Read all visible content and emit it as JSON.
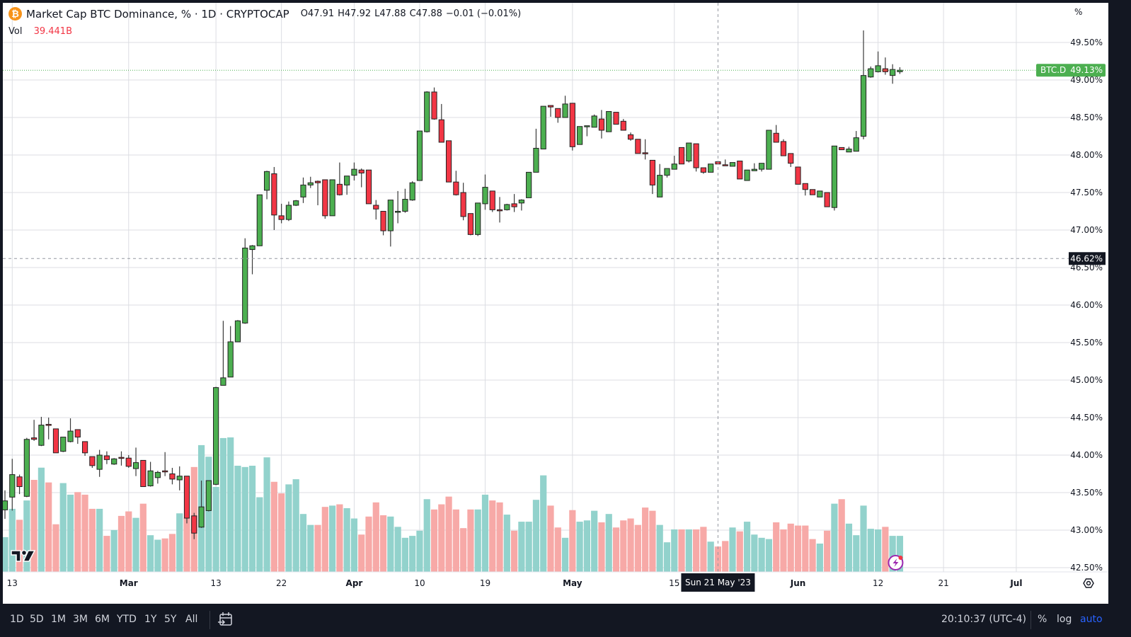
{
  "header": {
    "title": "Market Cap BTC Dominance, % · 1D · CRYPTOCAP",
    "open": "O47.91",
    "high": "H47.92",
    "low": "L47.88",
    "close": "C47.88",
    "change": "−0.01 (−0.01%)",
    "vol_label": "Vol",
    "vol_value": "39.441B",
    "axis_unit": "%"
  },
  "colors": {
    "up": "#4caf50",
    "down": "#f23645",
    "vol_up": "#92d2cc",
    "vol_down": "#f7a9a7",
    "accent": "#2962ff"
  },
  "chart_data": {
    "type": "candlestick",
    "title": "Market Cap BTC Dominance, % · 1D · CRYPTOCAP",
    "symbol_tag": "BTC.D",
    "last_price_label": "49.13%",
    "crosshair": {
      "price_label": "46.62%",
      "date_label": "Sun 21 May '23",
      "bar_index": 98,
      "price": 46.62
    },
    "ylim": [
      42.5,
      49.5
    ],
    "y_ticks": [
      "42.50%",
      "43.00%",
      "43.50%",
      "44.00%",
      "44.50%",
      "45.00%",
      "45.50%",
      "46.00%",
      "46.50%",
      "47.00%",
      "47.50%",
      "48.00%",
      "48.50%",
      "49.00%",
      "49.50%"
    ],
    "y_tick_values": [
      42.5,
      43,
      43.5,
      44,
      44.5,
      45,
      45.5,
      46,
      46.5,
      47,
      47.5,
      48,
      48.5,
      49,
      49.5
    ],
    "x_ticks": [
      {
        "label": "13",
        "bar": 1
      },
      {
        "label": "Mar",
        "bar": 17,
        "bold": true
      },
      {
        "label": "13",
        "bar": 29
      },
      {
        "label": "22",
        "bar": 38
      },
      {
        "label": "Apr",
        "bar": 48,
        "bold": true
      },
      {
        "label": "10",
        "bar": 57
      },
      {
        "label": "19",
        "bar": 66
      },
      {
        "label": "May",
        "bar": 78,
        "bold": true
      },
      {
        "label": "15",
        "bar": 92
      },
      {
        "label": "Jun",
        "bar": 109,
        "bold": true
      },
      {
        "label": "12",
        "bar": 120
      },
      {
        "label": "21",
        "bar": 129
      },
      {
        "label": "Jul",
        "bar": 139,
        "bold": true
      }
    ],
    "first_bar_date": "2023-02-12",
    "ohlc": [
      [
        43.27,
        43.53,
        43.15,
        43.39
      ],
      [
        43.44,
        43.95,
        43.26,
        43.74
      ],
      [
        43.71,
        43.74,
        43.48,
        43.58
      ],
      [
        43.45,
        44.23,
        43.44,
        44.21
      ],
      [
        44.23,
        44.47,
        44.19,
        44.21
      ],
      [
        44.13,
        44.51,
        44.12,
        44.4
      ],
      [
        44.41,
        44.5,
        44.21,
        44.4
      ],
      [
        44.35,
        44.35,
        44.03,
        44.03
      ],
      [
        44.05,
        44.24,
        44.04,
        44.24
      ],
      [
        44.18,
        44.49,
        44.17,
        44.32
      ],
      [
        44.34,
        44.34,
        44.15,
        44.24
      ],
      [
        44.18,
        44.18,
        43.99,
        44.03
      ],
      [
        43.98,
        43.98,
        43.83,
        43.86
      ],
      [
        43.81,
        44.07,
        43.71,
        44.0
      ],
      [
        43.99,
        44.05,
        43.88,
        43.94
      ],
      [
        43.88,
        43.96,
        43.87,
        43.95
      ],
      [
        43.97,
        44.05,
        43.86,
        43.96
      ],
      [
        43.96,
        44.0,
        43.83,
        43.85
      ],
      [
        43.82,
        44.1,
        43.72,
        43.9
      ],
      [
        43.93,
        43.93,
        43.58,
        43.58
      ],
      [
        43.59,
        43.91,
        43.58,
        43.79
      ],
      [
        43.7,
        43.79,
        43.62,
        43.77
      ],
      [
        43.79,
        44.04,
        43.72,
        43.78
      ],
      [
        43.75,
        43.83,
        43.61,
        43.68
      ],
      [
        43.67,
        43.85,
        43.53,
        43.72
      ],
      [
        43.72,
        43.72,
        43.09,
        43.16
      ],
      [
        43.19,
        43.23,
        42.88,
        42.96
      ],
      [
        43.04,
        43.66,
        43.03,
        43.31
      ],
      [
        43.26,
        43.66,
        43.25,
        43.66
      ],
      [
        43.61,
        44.91,
        43.6,
        44.9
      ],
      [
        44.93,
        45.79,
        44.93,
        45.03
      ],
      [
        45.04,
        45.72,
        45.04,
        45.51
      ],
      [
        45.51,
        45.8,
        45.51,
        45.79
      ],
      [
        45.76,
        46.89,
        45.75,
        46.76
      ],
      [
        46.74,
        46.8,
        46.41,
        46.79
      ],
      [
        46.79,
        47.47,
        46.79,
        47.47
      ],
      [
        47.53,
        47.79,
        47.41,
        47.78
      ],
      [
        47.75,
        47.84,
        47.0,
        47.2
      ],
      [
        47.19,
        47.35,
        47.09,
        47.14
      ],
      [
        47.14,
        47.38,
        47.12,
        47.33
      ],
      [
        47.33,
        47.4,
        47.32,
        47.39
      ],
      [
        47.44,
        47.7,
        47.36,
        47.6
      ],
      [
        47.6,
        47.71,
        47.56,
        47.63
      ],
      [
        47.65,
        47.66,
        47.33,
        47.63
      ],
      [
        47.67,
        47.67,
        47.15,
        47.19
      ],
      [
        47.19,
        47.67,
        47.19,
        47.67
      ],
      [
        47.61,
        47.9,
        47.46,
        47.47
      ],
      [
        47.6,
        47.72,
        47.47,
        47.72
      ],
      [
        47.73,
        47.9,
        47.66,
        47.81
      ],
      [
        47.8,
        47.82,
        47.57,
        47.76
      ],
      [
        47.8,
        47.8,
        47.35,
        47.35
      ],
      [
        47.33,
        47.4,
        47.14,
        47.28
      ],
      [
        47.25,
        47.25,
        46.93,
        46.99
      ],
      [
        46.99,
        47.4,
        46.78,
        47.4
      ],
      [
        47.24,
        47.52,
        47.09,
        47.25
      ],
      [
        47.25,
        47.55,
        47.23,
        47.41
      ],
      [
        47.4,
        47.65,
        47.39,
        47.63
      ],
      [
        47.66,
        48.32,
        47.66,
        48.32
      ],
      [
        48.31,
        48.85,
        48.3,
        48.84
      ],
      [
        48.84,
        48.9,
        48.47,
        48.48
      ],
      [
        48.47,
        48.68,
        48.17,
        48.17
      ],
      [
        48.19,
        48.19,
        47.64,
        47.64
      ],
      [
        47.64,
        47.79,
        47.46,
        47.47
      ],
      [
        47.5,
        47.63,
        47.13,
        47.18
      ],
      [
        47.22,
        47.22,
        46.93,
        46.94
      ],
      [
        46.94,
        47.36,
        46.92,
        47.36
      ],
      [
        47.35,
        47.74,
        47.27,
        47.57
      ],
      [
        47.52,
        47.52,
        47.24,
        47.27
      ],
      [
        47.27,
        47.44,
        47.1,
        47.26
      ],
      [
        47.27,
        47.35,
        47.26,
        47.34
      ],
      [
        47.35,
        47.48,
        47.24,
        47.31
      ],
      [
        47.36,
        47.41,
        47.26,
        47.4
      ],
      [
        47.43,
        47.77,
        47.43,
        47.77
      ],
      [
        47.77,
        48.35,
        47.77,
        48.09
      ],
      [
        48.08,
        48.65,
        48.08,
        48.65
      ],
      [
        48.66,
        48.66,
        48.51,
        48.64
      ],
      [
        48.62,
        48.62,
        48.43,
        48.5
      ],
      [
        48.5,
        48.79,
        48.5,
        48.68
      ],
      [
        48.69,
        48.69,
        48.06,
        48.11
      ],
      [
        48.14,
        48.38,
        48.14,
        48.38
      ],
      [
        48.38,
        48.39,
        48.25,
        48.39
      ],
      [
        48.37,
        48.54,
        48.37,
        48.52
      ],
      [
        48.48,
        48.6,
        48.22,
        48.33
      ],
      [
        48.31,
        48.58,
        48.31,
        48.58
      ],
      [
        48.57,
        48.57,
        48.41,
        48.41
      ],
      [
        48.45,
        48.48,
        48.33,
        48.33
      ],
      [
        48.27,
        48.3,
        48.19,
        48.21
      ],
      [
        48.21,
        48.21,
        48.02,
        48.02
      ],
      [
        48.03,
        48.21,
        47.94,
        48.02
      ],
      [
        47.93,
        47.93,
        47.48,
        47.6
      ],
      [
        47.44,
        47.88,
        47.44,
        47.73
      ],
      [
        47.73,
        47.82,
        47.7,
        47.82
      ],
      [
        47.81,
        47.99,
        47.81,
        47.88
      ],
      [
        48.1,
        48.1,
        47.88,
        47.88
      ],
      [
        47.92,
        48.16,
        47.9,
        48.16
      ],
      [
        48.15,
        48.15,
        47.78,
        47.83
      ],
      [
        47.83,
        47.83,
        47.75,
        47.77
      ],
      [
        47.77,
        47.88,
        47.77,
        47.88
      ],
      [
        47.91,
        47.92,
        47.88,
        47.88
      ],
      [
        47.87,
        47.94,
        47.86,
        47.86
      ],
      [
        47.85,
        47.9,
        47.85,
        47.9
      ],
      [
        47.92,
        47.92,
        47.68,
        47.68
      ],
      [
        47.66,
        47.8,
        47.66,
        47.8
      ],
      [
        47.79,
        47.89,
        47.79,
        47.81
      ],
      [
        47.81,
        47.89,
        47.78,
        47.89
      ],
      [
        47.81,
        48.33,
        47.81,
        48.33
      ],
      [
        48.29,
        48.4,
        48.17,
        48.17
      ],
      [
        48.18,
        48.21,
        47.99,
        47.99
      ],
      [
        48.02,
        48.02,
        47.84,
        47.89
      ],
      [
        47.84,
        47.84,
        47.61,
        47.61
      ],
      [
        47.62,
        47.62,
        47.46,
        47.54
      ],
      [
        47.54,
        47.54,
        47.47,
        47.47
      ],
      [
        47.44,
        47.52,
        47.44,
        47.52
      ],
      [
        47.5,
        47.5,
        47.31,
        47.31
      ],
      [
        47.3,
        48.12,
        47.26,
        48.12
      ],
      [
        48.1,
        48.1,
        48.07,
        48.07
      ],
      [
        48.04,
        48.11,
        48.04,
        48.08
      ],
      [
        48.05,
        48.32,
        48.05,
        48.23
      ],
      [
        48.25,
        49.66,
        48.21,
        49.06
      ],
      [
        49.04,
        49.18,
        49.03,
        49.15
      ],
      [
        49.11,
        49.38,
        49.1,
        49.19
      ],
      [
        49.15,
        49.3,
        49.07,
        49.11
      ],
      [
        49.06,
        49.21,
        48.95,
        49.14
      ],
      [
        49.11,
        49.17,
        49.08,
        49.13
      ]
    ],
    "volume_unit": "B",
    "volume": [
      54,
      98,
      81,
      111,
      143,
      162,
      139,
      74,
      138,
      120,
      124,
      120,
      98,
      98,
      56,
      65,
      87,
      94,
      84,
      106,
      57,
      50,
      52,
      59,
      91,
      84,
      163,
      197,
      179,
      132,
      208,
      209,
      165,
      163,
      165,
      116,
      178,
      140,
      122,
      136,
      144,
      90,
      73,
      73,
      101,
      103,
      105,
      99,
      83,
      58,
      86,
      108,
      88,
      86,
      70,
      53,
      56,
      64,
      113,
      97,
      105,
      117,
      97,
      68,
      97,
      97,
      120,
      111,
      108,
      89,
      64,
      78,
      78,
      112,
      150,
      103,
      69,
      53,
      96,
      78,
      80,
      95,
      77,
      90,
      69,
      80,
      83,
      73,
      100,
      95,
      73,
      46,
      66,
      66,
      66,
      66,
      70,
      47,
      39.441,
      48,
      69,
      63,
      78,
      58,
      53,
      51,
      77,
      66,
      75,
      72,
      72,
      51,
      44,
      64,
      106,
      113,
      75,
      57,
      103,
      67,
      66,
      70,
      56,
      56
    ]
  },
  "toolbar": {
    "ranges": [
      "1D",
      "5D",
      "1M",
      "3M",
      "6M",
      "YTD",
      "1Y",
      "5Y",
      "All"
    ],
    "time": "20:10:37 (UTC-4)",
    "percent": "%",
    "log": "log",
    "auto": "auto"
  }
}
